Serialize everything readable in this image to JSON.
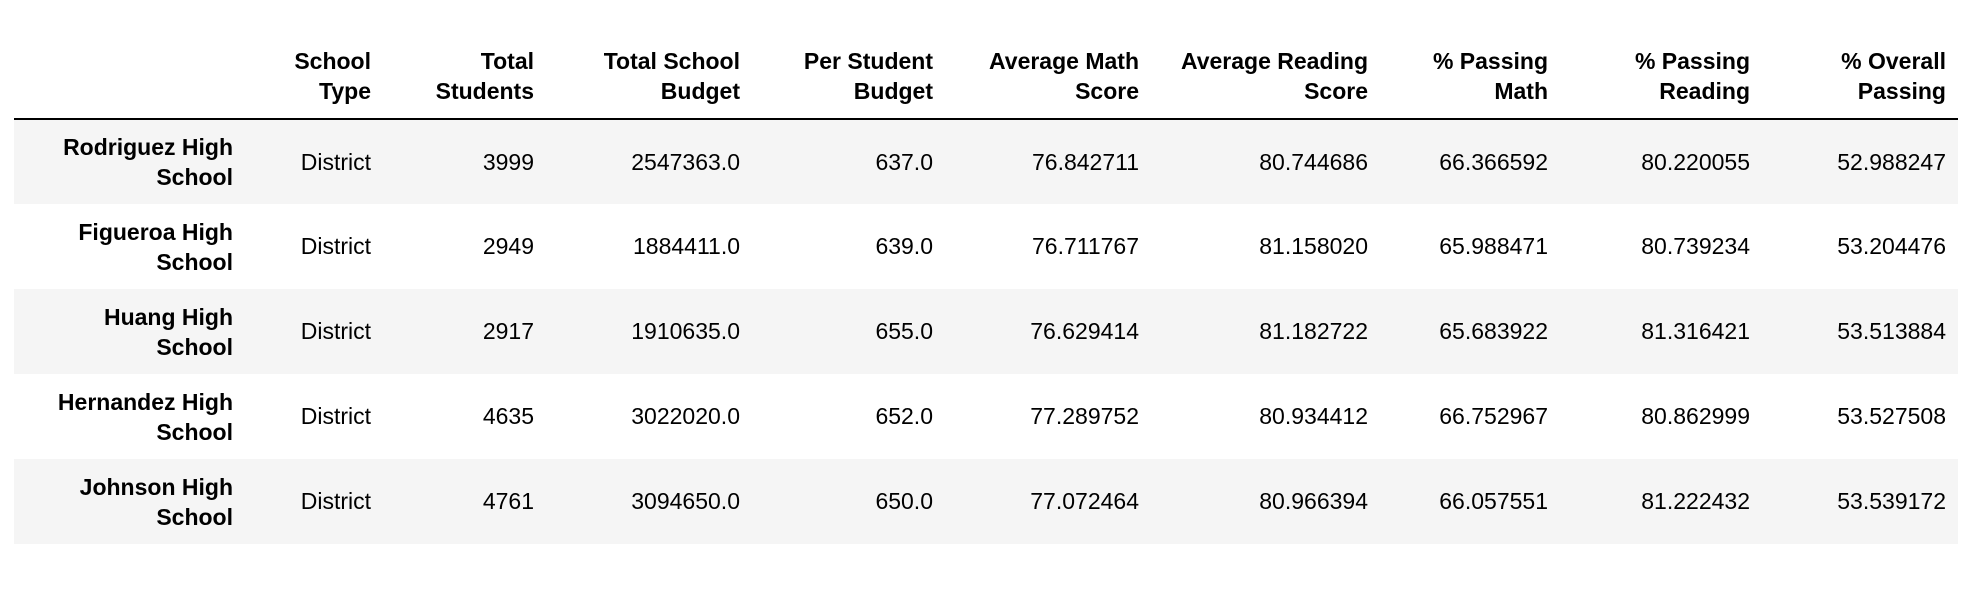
{
  "table": {
    "columns": [
      "",
      "School Type",
      "Total Students",
      "Total School Budget",
      "Per Student Budget",
      "Average Math Score",
      "Average Reading Score",
      "% Passing Math",
      "% Passing Reading",
      "% Overall Passing"
    ],
    "header_lines": [
      [
        "",
        ""
      ],
      [
        "School",
        "Type"
      ],
      [
        "Total",
        "Students"
      ],
      [
        "Total School",
        "Budget"
      ],
      [
        "Per Student",
        "Budget"
      ],
      [
        "Average Math",
        "Score"
      ],
      [
        "Average Reading",
        "Score"
      ],
      [
        "% Passing",
        "Math"
      ],
      [
        "% Passing",
        "Reading"
      ],
      [
        "% Overall",
        "Passing"
      ]
    ],
    "rows": [
      {
        "name_lines": [
          "Rodriguez High",
          "School"
        ],
        "cells": [
          "District",
          "3999",
          "2547363.0",
          "637.0",
          "76.842711",
          "80.744686",
          "66.366592",
          "80.220055",
          "52.988247"
        ]
      },
      {
        "name_lines": [
          "Figueroa High",
          "School"
        ],
        "cells": [
          "District",
          "2949",
          "1884411.0",
          "639.0",
          "76.711767",
          "81.158020",
          "65.988471",
          "80.739234",
          "53.204476"
        ]
      },
      {
        "name_lines": [
          "Huang High",
          "School"
        ],
        "cells": [
          "District",
          "2917",
          "1910635.0",
          "655.0",
          "76.629414",
          "81.182722",
          "65.683922",
          "81.316421",
          "53.513884"
        ]
      },
      {
        "name_lines": [
          "Hernandez High",
          "School"
        ],
        "cells": [
          "District",
          "4635",
          "3022020.0",
          "652.0",
          "77.289752",
          "80.934412",
          "66.752967",
          "80.862999",
          "53.527508"
        ]
      },
      {
        "name_lines": [
          "Johnson High",
          "School"
        ],
        "cells": [
          "District",
          "4761",
          "3094650.0",
          "650.0",
          "77.072464",
          "80.966394",
          "66.057551",
          "81.222432",
          "53.539172"
        ]
      }
    ]
  }
}
